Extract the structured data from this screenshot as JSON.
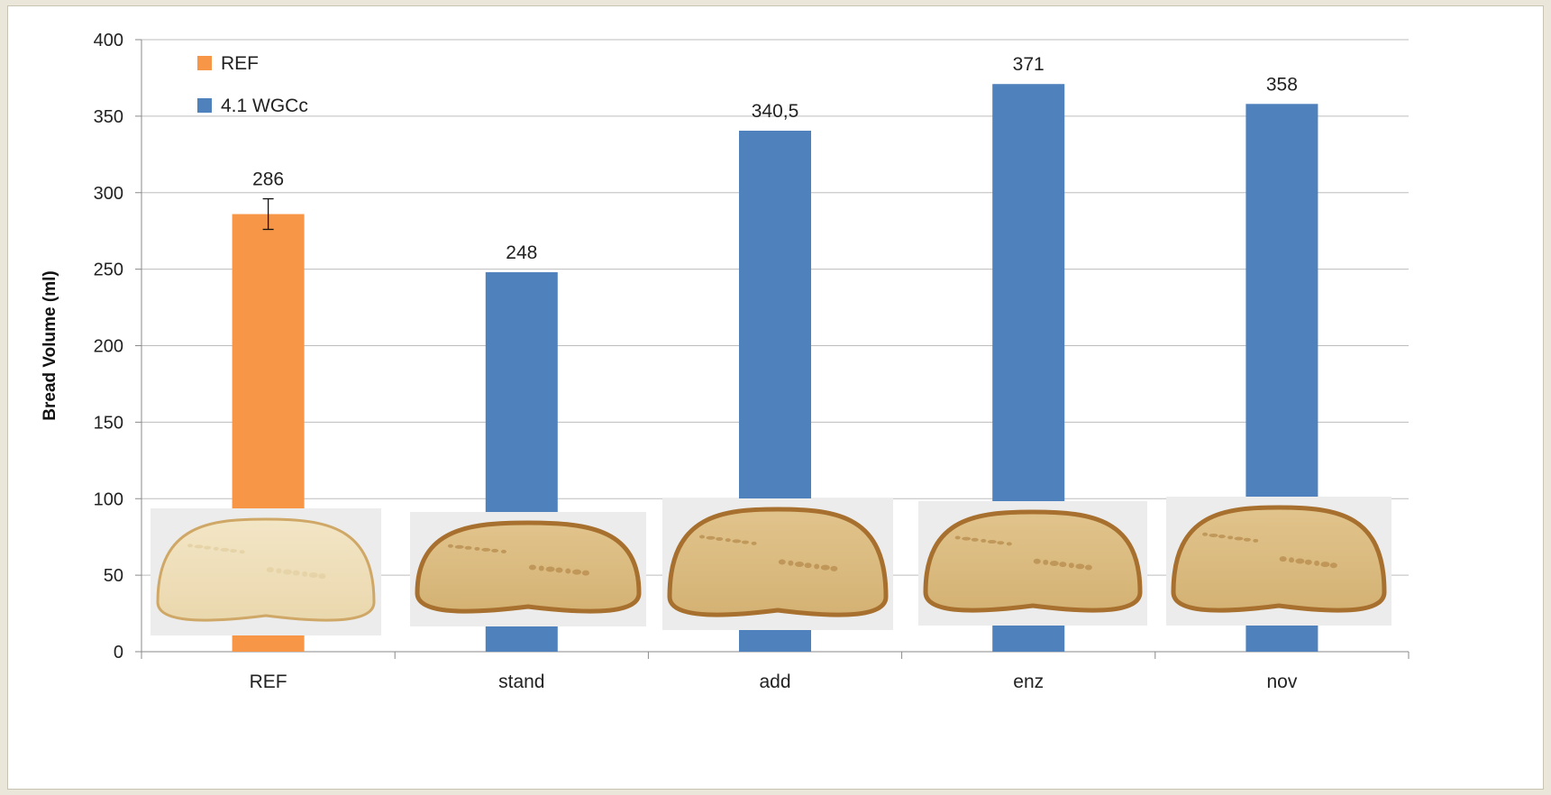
{
  "chart_data": {
    "type": "bar",
    "title": "",
    "xlabel": "",
    "ylabel": "Bread Volume (ml)",
    "ylim": [
      0,
      400
    ],
    "yticks": [
      0,
      50,
      100,
      150,
      200,
      250,
      300,
      350,
      400
    ],
    "grid": true,
    "legend_position": "top-left",
    "categories": [
      "REF",
      "stand",
      "add",
      "enz",
      "nov"
    ],
    "series": [
      {
        "name": "REF",
        "color": "#f79646",
        "values": [
          286,
          null,
          null,
          null,
          null
        ],
        "error": [
          10,
          null,
          null,
          null,
          null
        ]
      },
      {
        "name": "4.1 WGCc",
        "color": "#4f81bd",
        "values": [
          null,
          248,
          340.5,
          371,
          358
        ]
      }
    ],
    "data_labels": [
      "286",
      "248",
      "340,5",
      "371",
      "358"
    ],
    "photos": [
      "REF bread slice",
      "stand bread slice",
      "add bread slice",
      "enz bread slice",
      "nov bread slice"
    ]
  }
}
